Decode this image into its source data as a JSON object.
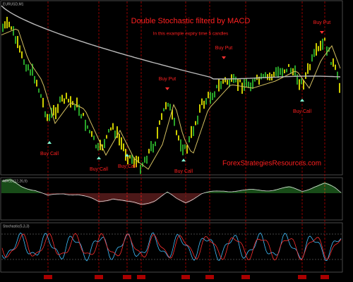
{
  "header": {
    "symbol": "EURUSD,M1"
  },
  "title": "Double Stochastic filterd by MACD",
  "subtitle": "In this example expiry time 5 candles",
  "watermark": "ForexStrategiesResources.com",
  "signals": [
    {
      "label": "Buy Call"
    },
    {
      "label": "Buy Call"
    },
    {
      "label": "Buy Call"
    },
    {
      "label": "Buy Call"
    },
    {
      "label": "Buy Put"
    },
    {
      "label": "Buy Put"
    },
    {
      "label": "Buy Call"
    },
    {
      "label": "Buy Put"
    }
  ],
  "panels": [
    {
      "label": "MACD(12,26,9)"
    },
    {
      "label": "Stochastic(5,3,3)"
    }
  ]
}
